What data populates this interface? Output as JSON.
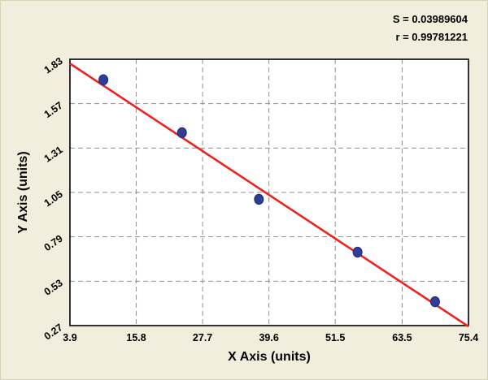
{
  "chart_data": {
    "type": "scatter",
    "title": "",
    "annotations": [
      "S = 0.03989604",
      "r = 0.99781221"
    ],
    "xlabel": "X Axis (units)",
    "ylabel": "Y Axis (units)",
    "xlim": [
      3.9,
      75.4
    ],
    "ylim": [
      0.27,
      1.83
    ],
    "x_tick_labels": [
      "3.9",
      "15.8",
      "27.7",
      "39.6",
      "51.5",
      "63.5",
      "75.4"
    ],
    "y_tick_labels": [
      "0.27",
      "0.53",
      "0.79",
      "1.05",
      "1.31",
      "1.57",
      "1.83"
    ],
    "grid": "dashed",
    "legend": "none",
    "points": [
      {
        "x": 9.9,
        "y": 1.71
      },
      {
        "x": 24.0,
        "y": 1.4
      },
      {
        "x": 37.8,
        "y": 1.01
      },
      {
        "x": 55.5,
        "y": 0.7
      },
      {
        "x": 69.4,
        "y": 0.41
      }
    ],
    "fit_line": {
      "x1": 3.9,
      "y1": 1.805,
      "x2": 75.4,
      "y2": 0.265
    },
    "colors": {
      "point": "#2e3d96",
      "point_edge": "#1c2a78",
      "line": "#ee2222",
      "background": "#f1eedd",
      "plot_background": "#ffffff",
      "grid": "#8f8f8f",
      "frame": "#000000"
    }
  }
}
